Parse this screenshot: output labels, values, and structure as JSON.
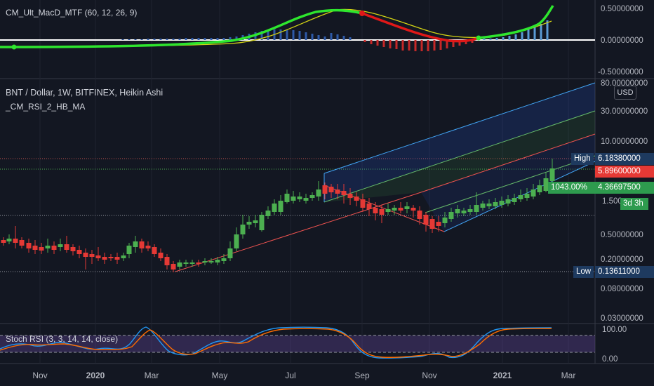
{
  "macd_panel": {
    "label": "CM_Ult_MacD_MTF (60, 12, 26, 9)"
  },
  "price_panel": {
    "symbol_line": "BNT / Dollar, 1W, BITFINEX, Heikin Ashi",
    "overlay_label": "_CM_RSI_2_HB_MA",
    "currency": "USD"
  },
  "stoch_panel": {
    "label": "Stoch RSI (3, 3, 14, 14, close)"
  },
  "axis": {
    "macd_ticks": [
      "0.50000000",
      "0.00000000",
      "-0.50000000"
    ],
    "price_ticks": [
      "80.00000000",
      "30.00000000",
      "10.00000000",
      "1.500",
      "0.50000000",
      "0.20000000",
      "0.08000000",
      "0.03000000"
    ],
    "stoch_ticks": [
      "100.00",
      "0.00"
    ],
    "time_labels": [
      "Nov",
      "2020",
      "Mar",
      "May",
      "Jul",
      "Sep",
      "Nov",
      "2021",
      "Mar"
    ]
  },
  "price_badges": {
    "high_label": "High",
    "high_value": "6.18380000",
    "last_value": "5.89600000",
    "change_pct": "1043.00%",
    "change_value": "4.36697500",
    "countdown": "3d 3h",
    "low_label": "Low",
    "low_value": "0.13611000"
  },
  "colors": {
    "background": "#131722",
    "bull": "#26a69a",
    "bear": "#ef5350",
    "candle_green": "#4caf50",
    "candle_red": "#e53935",
    "badge_high": "#1e3a5f",
    "badge_last": "#e53935",
    "badge_change": "#2e9b4e",
    "stoch_k": "#2196f3",
    "stoch_d": "#ff6d00"
  }
}
